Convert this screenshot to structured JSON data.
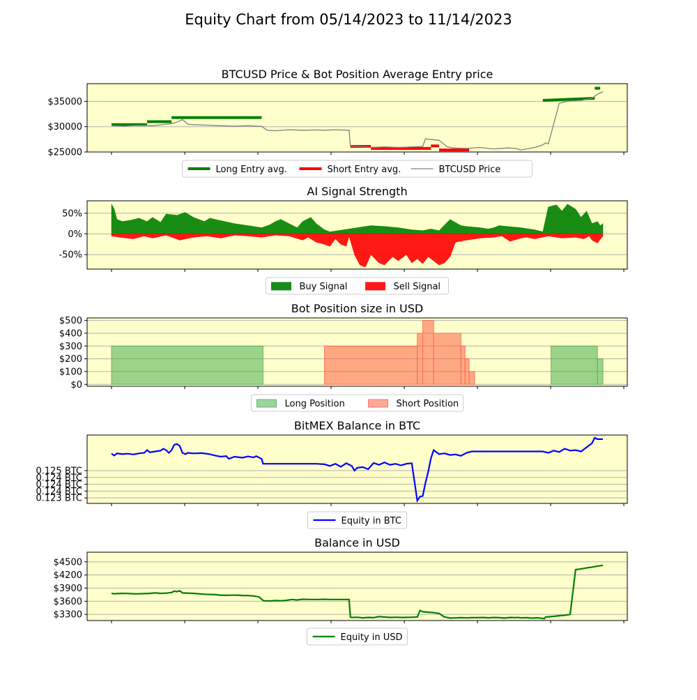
{
  "figure": {
    "title": "Equity Chart from 05/14/2023 to 11/14/2023"
  },
  "colors": {
    "panel_bg": "#ffffcc",
    "grid": "#b0b0b0",
    "long_entry": "#008000",
    "short_entry": "#ff0000",
    "price": "#808080",
    "buy": "#008000",
    "sell": "#ff0000",
    "long_pos": "#4caf50",
    "short_pos": "#ff6347",
    "equity_btc": "#0000ff",
    "equity_usd": "#008000"
  },
  "chart_data": [
    {
      "type": "line",
      "title": "BTCUSD Price & Bot Position Average Entry price",
      "ylim": [
        25000,
        38500
      ],
      "yticks": [
        25000,
        30000,
        35000
      ],
      "ytick_labels": [
        "$25000",
        "$30000",
        "$35000"
      ],
      "xlim": [
        0,
        184
      ],
      "grid": "y",
      "legend": {
        "placement": "bottom-center",
        "entries": [
          "Long Entry avg.",
          "Short Entry avg.",
          "BTCUSD Price"
        ]
      },
      "series": [
        {
          "name": "BTCUSD Price",
          "kind": "line",
          "x": [
            0,
            5,
            10,
            15,
            20,
            22,
            24,
            26,
            28,
            30,
            35,
            40,
            45,
            50,
            55,
            57,
            60,
            65,
            70,
            75,
            78,
            82,
            87,
            87.5,
            90,
            95,
            100,
            105,
            110,
            114,
            115,
            120,
            123,
            125,
            130,
            135,
            140,
            145,
            148,
            150,
            155,
            158,
            159,
            160,
            164,
            166,
            168,
            172,
            176,
            178,
            180
          ],
          "values": [
            30200,
            30100,
            30300,
            30200,
            30500,
            30600,
            30900,
            31400,
            30500,
            30400,
            30300,
            30200,
            30100,
            30200,
            30050,
            29300,
            29200,
            29400,
            29300,
            29350,
            29300,
            29400,
            29300,
            26200,
            26100,
            25900,
            26000,
            25900,
            26000,
            26100,
            27600,
            27300,
            26000,
            25800,
            25700,
            25900,
            25600,
            25800,
            25700,
            25400,
            25900,
            26400,
            26800,
            26600,
            34600,
            34900,
            35100,
            35200,
            35600,
            36400,
            36900
          ]
        },
        {
          "name": "Long Entry avg.",
          "kind": "segments",
          "segments": [
            {
              "x": [
                0,
                13
              ],
              "y": [
                30400,
                30400
              ]
            },
            {
              "x": [
                13,
                22
              ],
              "y": [
                31000,
                31000
              ]
            },
            {
              "x": [
                22,
                55
              ],
              "y": [
                31800,
                31800
              ]
            },
            {
              "x": [
                158,
                177
              ],
              "y": [
                35200,
                35600
              ]
            },
            {
              "x": [
                177,
                179
              ],
              "y": [
                37600,
                37600
              ]
            }
          ]
        },
        {
          "name": "Short Entry avg.",
          "kind": "segments",
          "segments": [
            {
              "x": [
                87.5,
                95
              ],
              "y": [
                26100,
                26100
              ]
            },
            {
              "x": [
                95,
                117
              ],
              "y": [
                25700,
                25700
              ]
            },
            {
              "x": [
                117,
                120
              ],
              "y": [
                26200,
                26200
              ]
            },
            {
              "x": [
                120,
                131
              ],
              "y": [
                25400,
                25400
              ]
            }
          ]
        }
      ]
    },
    {
      "type": "area",
      "title": "AI Signal Strength",
      "ylim": [
        -85,
        80
      ],
      "yticks": [
        -50,
        0,
        50
      ],
      "ytick_labels": [
        "-50%",
        "0%",
        "50%"
      ],
      "xlim": [
        0,
        184
      ],
      "grid": "y",
      "legend": {
        "placement": "bottom-center",
        "entries": [
          "Buy Signal",
          "Sell Signal"
        ]
      },
      "series": [
        {
          "name": "Buy Signal",
          "x": [
            0,
            1,
            2,
            4,
            7,
            10,
            13,
            15,
            18,
            20,
            24,
            27,
            30,
            34,
            36,
            40,
            45,
            50,
            55,
            58,
            60,
            62,
            65,
            68,
            70,
            73,
            75,
            78,
            80,
            85,
            90,
            95,
            100,
            105,
            110,
            114,
            117,
            120,
            124,
            128,
            130,
            135,
            138,
            140,
            142,
            145,
            150,
            155,
            158,
            160,
            163,
            165,
            167,
            170,
            172,
            174,
            176,
            178,
            179,
            180
          ],
          "values": [
            72,
            60,
            35,
            30,
            33,
            38,
            30,
            40,
            28,
            48,
            45,
            52,
            40,
            30,
            38,
            32,
            25,
            20,
            15,
            22,
            30,
            35,
            25,
            15,
            30,
            40,
            25,
            10,
            5,
            10,
            15,
            20,
            18,
            15,
            10,
            8,
            12,
            8,
            35,
            20,
            18,
            15,
            12,
            15,
            20,
            18,
            15,
            10,
            5,
            65,
            70,
            55,
            72,
            60,
            40,
            55,
            25,
            30,
            20,
            25
          ]
        },
        {
          "name": "Sell Signal",
          "x": [
            0,
            3,
            8,
            12,
            15,
            20,
            25,
            30,
            35,
            40,
            45,
            50,
            55,
            60,
            65,
            70,
            72,
            75,
            78,
            80,
            82,
            84,
            86,
            87,
            89,
            91,
            93,
            95,
            98,
            100,
            103,
            105,
            108,
            110,
            112,
            114,
            116,
            118,
            120,
            122,
            124,
            126,
            130,
            135,
            140,
            143,
            146,
            150,
            152,
            155,
            160,
            165,
            170,
            173,
            175,
            176,
            178,
            180
          ],
          "values": [
            -5,
            -8,
            -12,
            -5,
            -10,
            -3,
            -15,
            -8,
            -5,
            -10,
            -3,
            -5,
            -8,
            -3,
            -5,
            -15,
            -8,
            -20,
            -25,
            -30,
            -12,
            -25,
            -30,
            -5,
            -50,
            -75,
            -80,
            -50,
            -70,
            -75,
            -55,
            -65,
            -50,
            -70,
            -60,
            -72,
            -55,
            -65,
            -75,
            -70,
            -55,
            -20,
            -15,
            -10,
            -8,
            -5,
            -18,
            -10,
            -8,
            -12,
            -5,
            -10,
            -8,
            -12,
            -5,
            -15,
            -22,
            -5
          ]
        }
      ]
    },
    {
      "type": "area",
      "title": "Bot Position size in USD",
      "ylim": [
        -15,
        520
      ],
      "yticks": [
        0,
        100,
        200,
        300,
        400,
        500
      ],
      "ytick_labels": [
        "$0",
        "$100",
        "$200",
        "$300",
        "$400",
        "$500"
      ],
      "xlim": [
        0,
        184
      ],
      "grid": "y",
      "legend": {
        "placement": "bottom-center",
        "entries": [
          "Long Position",
          "Short Position"
        ]
      },
      "series": [
        {
          "name": "Long Position",
          "steps": [
            {
              "x": [
                0,
                55.5
              ],
              "value": 300
            },
            {
              "x": [
                161,
                178
              ],
              "value": 300
            },
            {
              "x": [
                178,
                180
              ],
              "value": 200
            }
          ]
        },
        {
          "name": "Short Position",
          "steps": [
            {
              "x": [
                78,
                112
              ],
              "value": 300
            },
            {
              "x": [
                112,
                114
              ],
              "value": 400
            },
            {
              "x": [
                114,
                118
              ],
              "value": 500
            },
            {
              "x": [
                118,
                128
              ],
              "value": 400
            },
            {
              "x": [
                128,
                129.5
              ],
              "value": 300
            },
            {
              "x": [
                129.5,
                131
              ],
              "value": 200
            },
            {
              "x": [
                131,
                133
              ],
              "value": 100
            }
          ]
        }
      ]
    },
    {
      "type": "line",
      "title": "BitMEX Balance in BTC",
      "ylim": [
        0.12345,
        0.12595
      ],
      "yticks": [
        0.12365,
        0.1239,
        0.12415,
        0.1244,
        0.12465
      ],
      "ytick_labels": [
        "0.123 BTC",
        "0.124 BTC",
        "0.124 BTC",
        "0.124 BTC",
        "0.125 BTC"
      ],
      "xlim": [
        0,
        184
      ],
      "grid": "y",
      "legend": {
        "placement": "bottom-center",
        "entries": [
          "Equity in BTC"
        ]
      },
      "series": [
        {
          "name": "Equity in BTC",
          "x": [
            0,
            1,
            2,
            4,
            6,
            8,
            10,
            12,
            13,
            14,
            16,
            18,
            19,
            20,
            21,
            22,
            23,
            24,
            25,
            26,
            27,
            28,
            30,
            33,
            36,
            38,
            40,
            42,
            43,
            45,
            48,
            50,
            52,
            53,
            55,
            55.5,
            58,
            60,
            65,
            70,
            75,
            78,
            80,
            82,
            84,
            86,
            88,
            89,
            90,
            92,
            94,
            96,
            98,
            100,
            102,
            104,
            106,
            108,
            110,
            112,
            113,
            114,
            115,
            116,
            117,
            118,
            120,
            122,
            124,
            126,
            128,
            130,
            132,
            134,
            140,
            150,
            158,
            160,
            162,
            164,
            166,
            168,
            170,
            172,
            174,
            176,
            177,
            178,
            180
          ],
          "values": [
            0.12527,
            0.1252,
            0.12528,
            0.12525,
            0.12527,
            0.12524,
            0.12528,
            0.1253,
            0.1254,
            0.12532,
            0.12535,
            0.12538,
            0.12545,
            0.1254,
            0.1253,
            0.1254,
            0.1256,
            0.12562,
            0.12555,
            0.1253,
            0.12525,
            0.1253,
            0.12528,
            0.12529,
            0.12525,
            0.1252,
            0.12516,
            0.12518,
            0.12508,
            0.12516,
            0.12512,
            0.12517,
            0.12513,
            0.12518,
            0.12508,
            0.1249,
            0.1249,
            0.1249,
            0.1249,
            0.1249,
            0.1249,
            0.12488,
            0.12482,
            0.1249,
            0.12479,
            0.12492,
            0.12482,
            0.12465,
            0.12475,
            0.12478,
            0.1247,
            0.12493,
            0.12486,
            0.12495,
            0.12486,
            0.1249,
            0.12484,
            0.1249,
            0.12492,
            0.12355,
            0.1237,
            0.12372,
            0.1242,
            0.1246,
            0.1251,
            0.1254,
            0.12525,
            0.12528,
            0.12522,
            0.12524,
            0.12519,
            0.1253,
            0.12535,
            0.12535,
            0.12535,
            0.12535,
            0.12535,
            0.1253,
            0.12538,
            0.12533,
            0.12545,
            0.12538,
            0.1254,
            0.12535,
            0.1255,
            0.12565,
            0.12585,
            0.1258,
            0.1258
          ]
        }
      ]
    },
    {
      "type": "line",
      "title": "Balance in USD",
      "ylim": [
        3160,
        4720
      ],
      "yticks": [
        3300,
        3600,
        3900,
        4200,
        4500
      ],
      "ytick_labels": [
        "$3300",
        "$3600",
        "$3900",
        "$4200",
        "$4500"
      ],
      "xlim": [
        0,
        184
      ],
      "grid": "y",
      "legend": {
        "placement": "bottom-center",
        "entries": [
          "Equity in USD"
        ]
      },
      "series": [
        {
          "name": "Equity in USD",
          "x": [
            0,
            1,
            2,
            4,
            6,
            8,
            10,
            12,
            14,
            16,
            18,
            20,
            22,
            23,
            24,
            25,
            26,
            30,
            34,
            38,
            40,
            42,
            44,
            46,
            48,
            50,
            52,
            54,
            55.5,
            56,
            58,
            60,
            62,
            64,
            66,
            68,
            70,
            72,
            74,
            76,
            78,
            80,
            82,
            84,
            86,
            87,
            87.5,
            88,
            90,
            92,
            94,
            96,
            98,
            100,
            102,
            104,
            106,
            108,
            110,
            112,
            113,
            114,
            116,
            118,
            120,
            122,
            124,
            126,
            128,
            130,
            132,
            134,
            136,
            138,
            140,
            142,
            144,
            146,
            148,
            149,
            150,
            152,
            154,
            156,
            158,
            158.5,
            159,
            162,
            164,
            166,
            168,
            170,
            172,
            174,
            176,
            178,
            180
          ],
          "values": [
            3780,
            3770,
            3775,
            3780,
            3778,
            3772,
            3770,
            3775,
            3780,
            3790,
            3780,
            3785,
            3800,
            3830,
            3820,
            3840,
            3790,
            3780,
            3760,
            3750,
            3740,
            3735,
            3738,
            3740,
            3732,
            3730,
            3720,
            3700,
            3620,
            3610,
            3605,
            3615,
            3610,
            3620,
            3640,
            3630,
            3645,
            3640,
            3640,
            3640,
            3645,
            3640,
            3640,
            3640,
            3640,
            3640,
            3240,
            3230,
            3235,
            3220,
            3230,
            3225,
            3250,
            3240,
            3230,
            3235,
            3230,
            3232,
            3235,
            3240,
            3390,
            3360,
            3350,
            3340,
            3320,
            3240,
            3215,
            3220,
            3225,
            3220,
            3225,
            3225,
            3230,
            3222,
            3230,
            3225,
            3215,
            3230,
            3225,
            3230,
            3220,
            3225,
            3215,
            3222,
            3210,
            3200,
            3240,
            3255,
            3270,
            3280,
            3300,
            4320,
            4340,
            4360,
            4380,
            4400,
            4420
          ]
        }
      ]
    }
  ]
}
